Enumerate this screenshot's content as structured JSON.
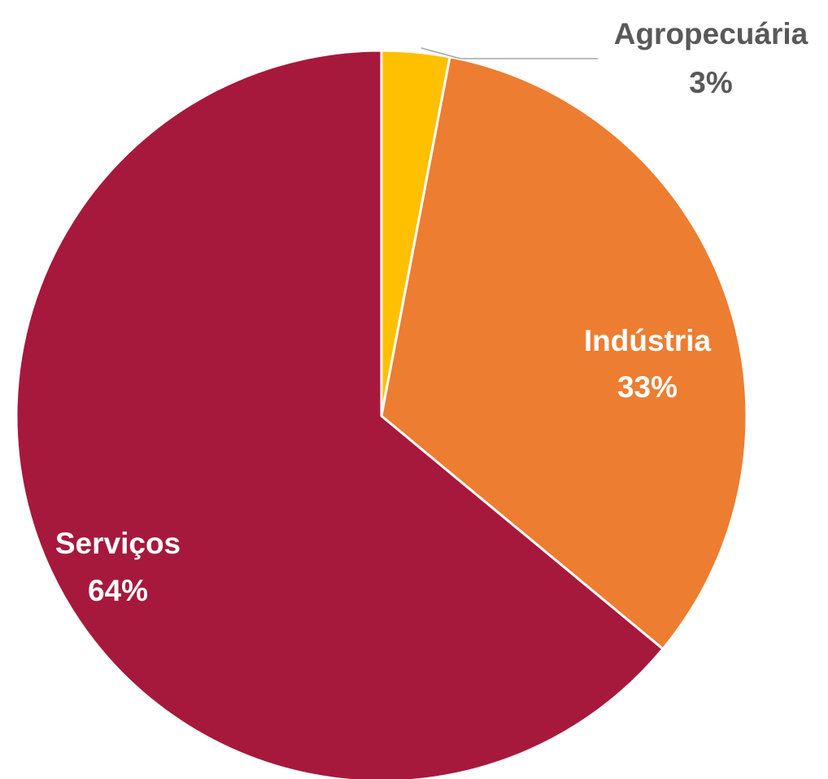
{
  "chart_data": {
    "type": "pie",
    "title": "",
    "slices": [
      {
        "label": "Agropecuária",
        "value": 3,
        "display": "3%",
        "color": "#FFC000",
        "label_color": "#595959",
        "label_position": "outside"
      },
      {
        "label": "Indústria",
        "value": 33,
        "display": "33%",
        "color": "#ED7D31",
        "label_color": "#FFFFFF",
        "label_position": "inside"
      },
      {
        "label": "Serviços",
        "value": 64,
        "display": "64%",
        "color": "#A6193C",
        "label_color": "#FFFFFF",
        "label_position": "inside"
      }
    ],
    "start_angle": "12 o'clock",
    "direction": "clockwise",
    "legend": "none",
    "label_format": "category and percentage"
  }
}
